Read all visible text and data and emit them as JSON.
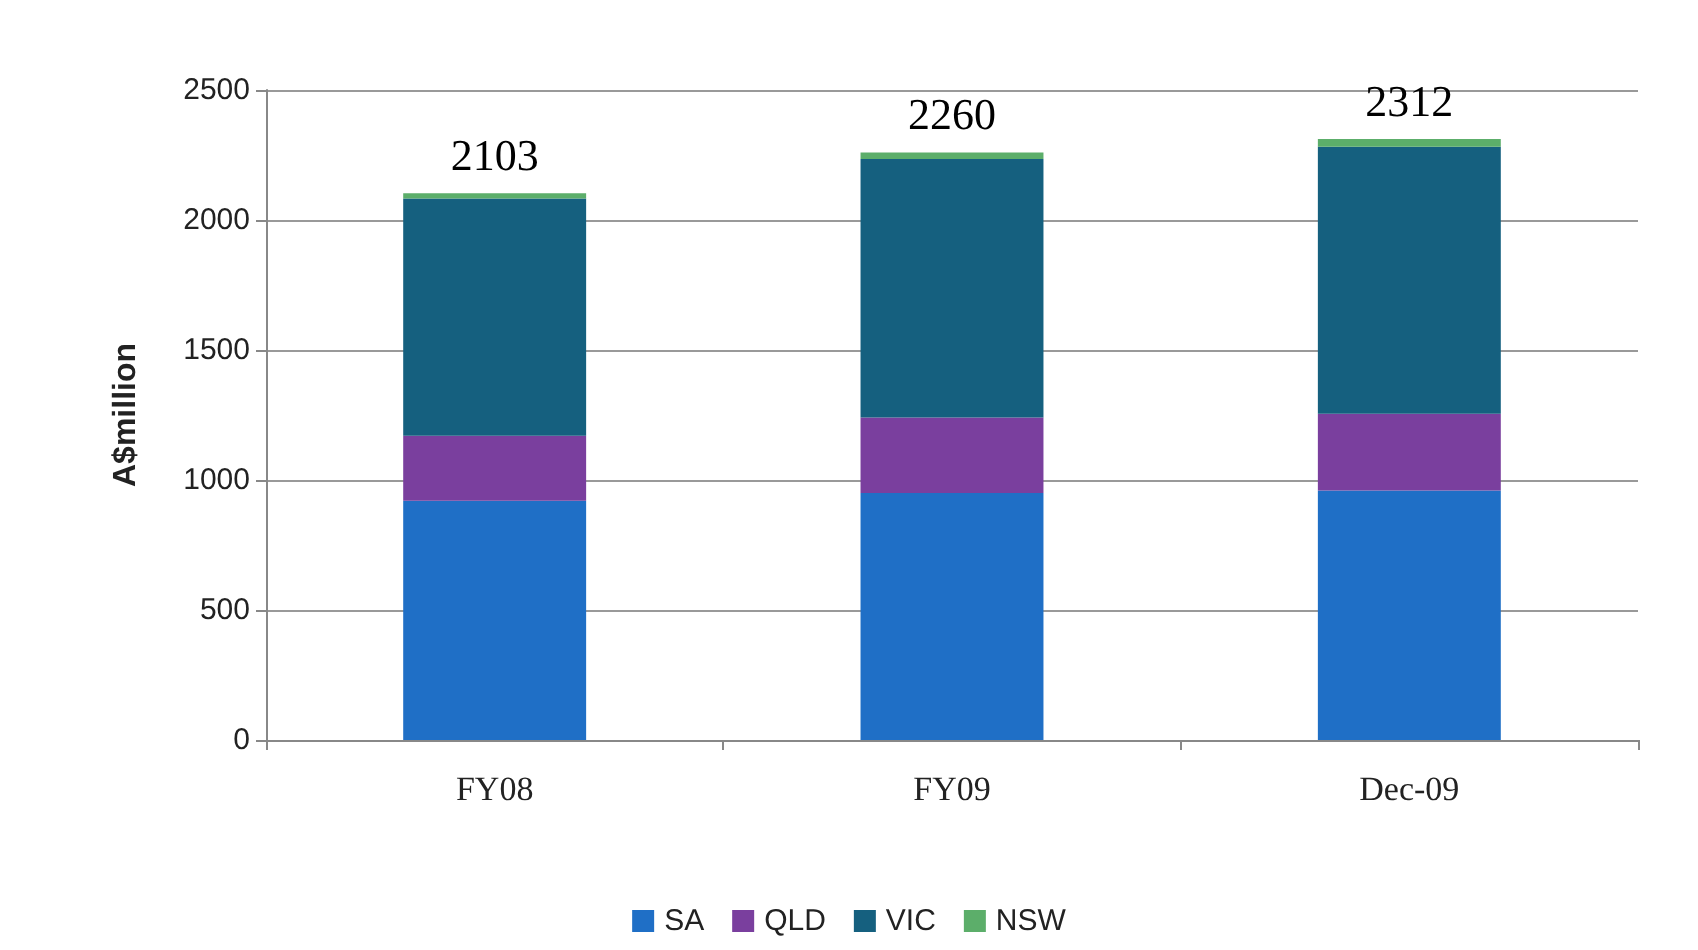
{
  "chart_data": {
    "type": "bar",
    "stacked": true,
    "ylabel": "A$million",
    "categories": [
      "FY08",
      "FY09",
      "Dec-09"
    ],
    "series": [
      {
        "name": "SA",
        "color": "#1f6fc6",
        "values": [
          920,
          950,
          960
        ]
      },
      {
        "name": "QLD",
        "color": "#7a3f9e",
        "values": [
          250,
          290,
          295
        ]
      },
      {
        "name": "VIC",
        "color": "#15607f",
        "values": [
          913,
          995,
          1027
        ]
      },
      {
        "name": "NSW",
        "color": "#5cae6a",
        "values": [
          20,
          25,
          30
        ]
      }
    ],
    "totals": [
      "2103",
      "2260",
      "2312"
    ],
    "ylim": [
      0,
      2500
    ],
    "yticks": [
      0,
      500,
      1000,
      1500,
      2000,
      2500
    ],
    "grid": "y",
    "legend": "bottom"
  }
}
